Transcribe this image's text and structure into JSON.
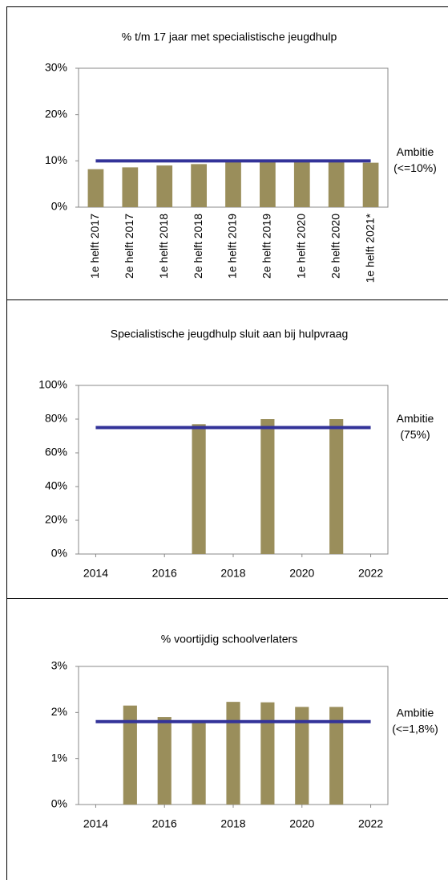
{
  "chart_data": [
    {
      "type": "bar",
      "title": "% t/m 17 jaar met specialistische jeugdhulp",
      "categories": [
        "1e helft 2017",
        "2e helft 2017",
        "1e helft 2018",
        "2e helft 2018",
        "1e helft 2019",
        "2e helft 2019",
        "1e helft 2020",
        "2e helft 2020",
        "1e helft 2021*"
      ],
      "values": [
        8.2,
        8.6,
        9.0,
        9.3,
        9.8,
        10.0,
        9.8,
        9.9,
        9.6
      ],
      "color": "#9a8e5b",
      "ylim": [
        0,
        30
      ],
      "yticks": [
        {
          "value": 0,
          "label": "0%"
        },
        {
          "value": 10,
          "label": "10%"
        },
        {
          "value": 20,
          "label": "20%"
        },
        {
          "value": 30,
          "label": "30%"
        }
      ],
      "target": 10,
      "target_color": "#333399",
      "annotation": [
        "Ambitie",
        "(<=10%)"
      ]
    },
    {
      "type": "bar",
      "title": "Specialistische jeugdhulp sluit aan bij hulpvraag",
      "x": [
        2017,
        2019,
        2021
      ],
      "values": [
        77,
        80,
        80
      ],
      "color": "#9a8e5b",
      "xlim": [
        2013.5,
        2022.5
      ],
      "xticks": [
        2014,
        2016,
        2018,
        2020,
        2022
      ],
      "ylim": [
        0,
        100
      ],
      "yticks": [
        {
          "value": 0,
          "label": "0%"
        },
        {
          "value": 20,
          "label": "20%"
        },
        {
          "value": 40,
          "label": "40%"
        },
        {
          "value": 60,
          "label": "60%"
        },
        {
          "value": 80,
          "label": "80%"
        },
        {
          "value": 100,
          "label": "100%"
        }
      ],
      "target": 75,
      "target_color": "#333399",
      "annotation": [
        "Ambitie",
        "(75%)"
      ]
    },
    {
      "type": "bar",
      "title": "% voortijdig schoolverlaters",
      "x": [
        2015,
        2016,
        2017,
        2018,
        2019,
        2020,
        2021
      ],
      "values": [
        2.15,
        1.9,
        1.8,
        2.23,
        2.22,
        2.12,
        2.12
      ],
      "color": "#9a8e5b",
      "xlim": [
        2013.5,
        2022.5
      ],
      "xticks": [
        2014,
        2016,
        2018,
        2020,
        2022
      ],
      "ylim": [
        0,
        3
      ],
      "yticks": [
        {
          "value": 0,
          "label": "0%"
        },
        {
          "value": 1,
          "label": "1%"
        },
        {
          "value": 2,
          "label": "2%"
        },
        {
          "value": 3,
          "label": "3%"
        }
      ],
      "target": 1.8,
      "target_color": "#333399",
      "annotation": [
        "Ambitie",
        "(<=1,8%)"
      ]
    }
  ]
}
